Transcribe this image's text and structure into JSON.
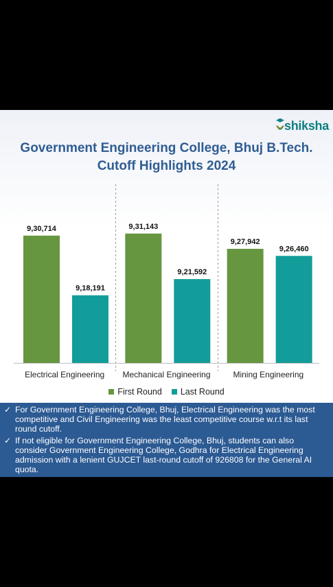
{
  "brand": {
    "name": "shiksha",
    "colors": {
      "green": "#66963f",
      "teal": "#129d9a",
      "title_blue": "#2f5d93",
      "notes_bg": "#2c5a93"
    }
  },
  "title": {
    "line1": "Government Engineering College, Bhuj B.Tech.",
    "line2": "Cutoff Highlights 2024"
  },
  "chart_data": {
    "type": "bar",
    "categories": [
      "Electrical Engineering",
      "Mechanical Engineering",
      "Mining Engineering"
    ],
    "series": [
      {
        "name": "First Round",
        "color": "#66963f",
        "values": [
          930714,
          931143,
          927942
        ],
        "labels": [
          "9,30,714",
          "9,31,143",
          "9,27,942"
        ]
      },
      {
        "name": "Last Round",
        "color": "#129d9a",
        "values": [
          918191,
          921592,
          926460
        ],
        "labels": [
          "9,18,191",
          "9,21,592",
          "9,26,460"
        ]
      }
    ],
    "ylim": [
      904000,
      934000
    ],
    "grid": false,
    "legend_position": "bottom"
  },
  "notes": [
    "For Government Engineering College, Bhuj, Electrical Engineering was the most competitive and Civil Engineering was the least competitive course w.r.t its last round cutoff.",
    "If not eligible for Government Engineering College, Bhuj, students can also consider Government Engineering College, Godhra for Electrical Engineering admission with a lenient GUJCET last-round cutoff of 926808 for the General AI quota."
  ],
  "icons": {
    "check": "check-icon",
    "logo": "shiksha-logo-icon"
  }
}
